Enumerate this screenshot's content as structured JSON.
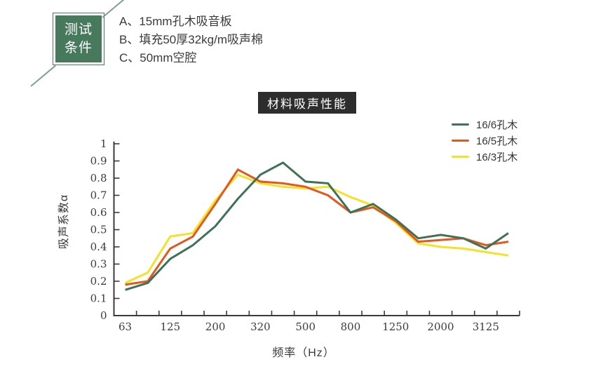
{
  "test_conditions": {
    "box_label_line1": "测试",
    "box_label_line2": "条件",
    "box_color": "#47795d",
    "items": [
      "A、15mm孔木吸音板",
      "B、填充50厚32kg/m吸声棉",
      "C、50mm空腔"
    ]
  },
  "title": {
    "text": "材料吸声性能",
    "bg": "#2d2d2d",
    "color": "#ffffff"
  },
  "legend": [
    {
      "label": "16/6孔木",
      "color": "#3e7257"
    },
    {
      "label": "16/5孔木",
      "color": "#e4571e"
    },
    {
      "label": "16/3孔木",
      "color": "#f0e32a"
    }
  ],
  "chart_data": {
    "type": "line",
    "title": "材料吸声性能",
    "xlabel": "频率（Hz）",
    "ylabel": "吸声系数α",
    "ylim": [
      0,
      1
    ],
    "grid": false,
    "legend_position": "top-right",
    "y_tick_labels": [
      "0",
      "0.1",
      "0.2",
      "0.3",
      "0.4",
      "0.5",
      "0.6",
      "0.7",
      "0.8",
      "0.9",
      "1"
    ],
    "x_tick_labels": [
      "63",
      "",
      "125",
      "",
      "200",
      "",
      "320",
      "",
      "500",
      "",
      "800",
      "",
      "1250",
      "",
      "2000",
      "",
      "3125",
      ""
    ],
    "series": [
      {
        "name": "16/6孔木",
        "color": "#3e7257",
        "values": [
          0.15,
          0.19,
          0.33,
          0.41,
          0.52,
          0.68,
          0.82,
          0.89,
          0.78,
          0.77,
          0.6,
          0.65,
          0.56,
          0.45,
          0.47,
          0.45,
          0.39,
          0.48
        ]
      },
      {
        "name": "16/5孔木",
        "color": "#e4571e",
        "values": [
          0.18,
          0.2,
          0.39,
          0.46,
          0.65,
          0.85,
          0.78,
          0.77,
          0.75,
          0.7,
          0.6,
          0.63,
          0.55,
          0.43,
          0.44,
          0.45,
          0.41,
          0.43
        ]
      },
      {
        "name": "16/3孔木",
        "color": "#f0e32a",
        "values": [
          0.19,
          0.25,
          0.46,
          0.48,
          0.67,
          0.82,
          0.77,
          0.75,
          0.74,
          0.75,
          0.69,
          0.64,
          0.54,
          0.42,
          0.4,
          0.39,
          0.37,
          0.35
        ]
      }
    ],
    "axis_color": "#3a3a3a"
  }
}
